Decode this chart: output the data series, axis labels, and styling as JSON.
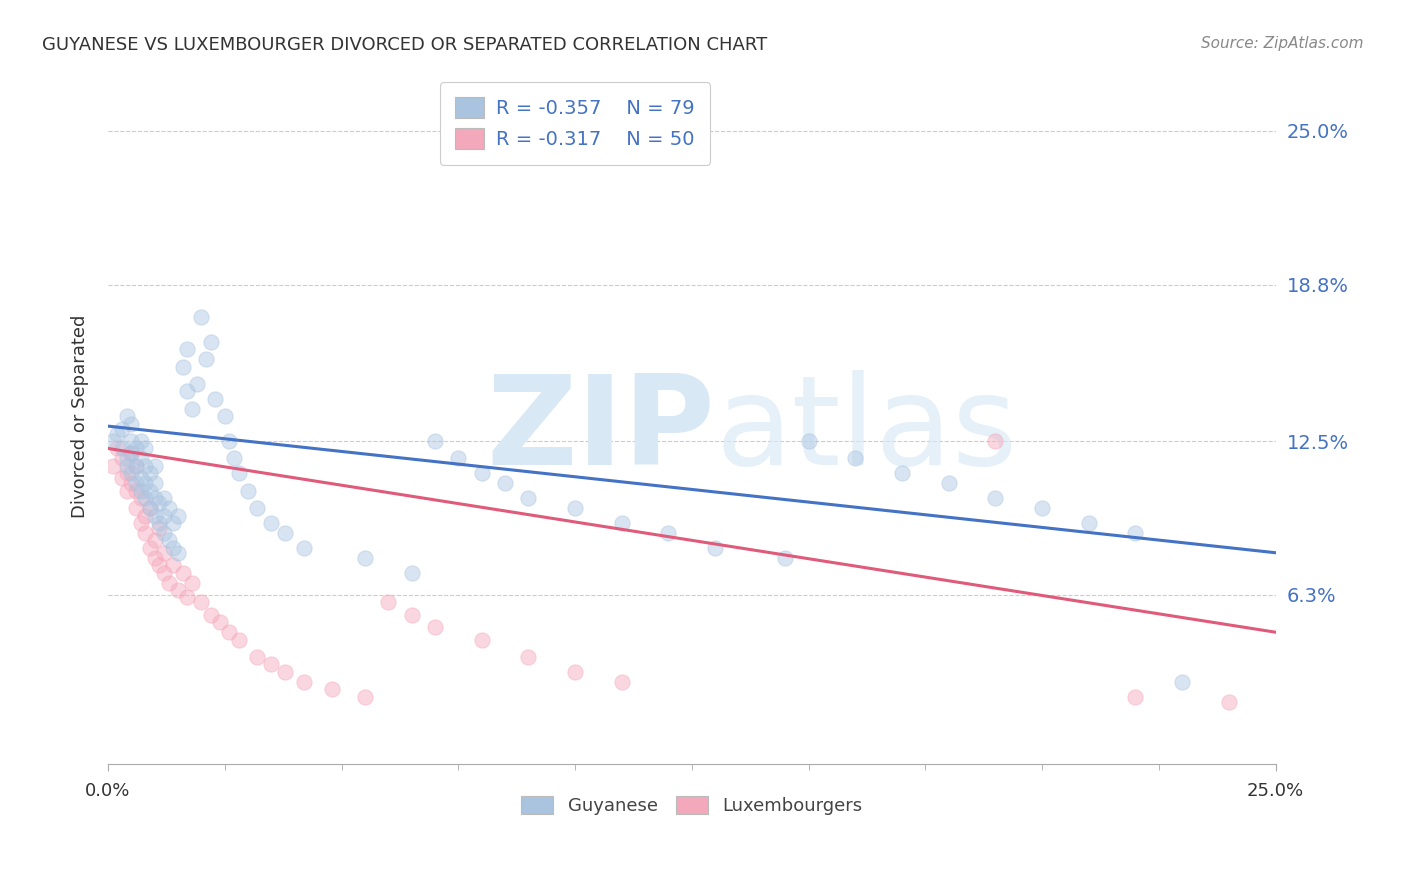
{
  "title": "GUYANESE VS LUXEMBOURGER DIVORCED OR SEPARATED CORRELATION CHART",
  "source": "Source: ZipAtlas.com",
  "ylabel": "Divorced or Separated",
  "ytick_labels": [
    "6.3%",
    "12.5%",
    "18.8%",
    "25.0%"
  ],
  "ytick_values": [
    0.063,
    0.125,
    0.188,
    0.25
  ],
  "xlim": [
    0.0,
    0.25
  ],
  "ylim": [
    -0.005,
    0.275
  ],
  "legend_r_blue": "R = -0.357",
  "legend_n_blue": "N = 79",
  "legend_r_pink": "R = -0.317",
  "legend_n_pink": "N = 50",
  "blue_color": "#aac4e0",
  "pink_color": "#f4a8bb",
  "blue_line_color": "#4472c4",
  "pink_line_color": "#e05a7a",
  "right_tick_color": "#4472c4",
  "watermark_zip": "ZIP",
  "watermark_atlas": "atlas",
  "watermark_color": "#d8e8f5",
  "grid_color": "#cccccc",
  "background_color": "#ffffff",
  "marker_size": 120,
  "marker_alpha": 0.45,
  "line_width": 2.2,
  "blue_scatter_x": [
    0.001,
    0.002,
    0.003,
    0.003,
    0.004,
    0.004,
    0.004,
    0.005,
    0.005,
    0.005,
    0.005,
    0.006,
    0.006,
    0.006,
    0.007,
    0.007,
    0.007,
    0.007,
    0.008,
    0.008,
    0.008,
    0.008,
    0.009,
    0.009,
    0.009,
    0.01,
    0.01,
    0.01,
    0.01,
    0.011,
    0.011,
    0.012,
    0.012,
    0.012,
    0.013,
    0.013,
    0.014,
    0.014,
    0.015,
    0.015,
    0.016,
    0.017,
    0.017,
    0.018,
    0.019,
    0.02,
    0.021,
    0.022,
    0.023,
    0.025,
    0.026,
    0.027,
    0.028,
    0.03,
    0.032,
    0.035,
    0.038,
    0.042,
    0.055,
    0.065,
    0.07,
    0.075,
    0.08,
    0.085,
    0.09,
    0.1,
    0.11,
    0.12,
    0.13,
    0.145,
    0.15,
    0.16,
    0.17,
    0.18,
    0.19,
    0.2,
    0.21,
    0.22,
    0.23
  ],
  "blue_scatter_y": [
    0.125,
    0.128,
    0.122,
    0.13,
    0.115,
    0.118,
    0.135,
    0.112,
    0.12,
    0.125,
    0.132,
    0.108,
    0.115,
    0.122,
    0.105,
    0.11,
    0.118,
    0.125,
    0.102,
    0.108,
    0.115,
    0.122,
    0.098,
    0.105,
    0.112,
    0.095,
    0.102,
    0.108,
    0.115,
    0.092,
    0.1,
    0.088,
    0.095,
    0.102,
    0.085,
    0.098,
    0.082,
    0.092,
    0.08,
    0.095,
    0.155,
    0.145,
    0.162,
    0.138,
    0.148,
    0.175,
    0.158,
    0.165,
    0.142,
    0.135,
    0.125,
    0.118,
    0.112,
    0.105,
    0.098,
    0.092,
    0.088,
    0.082,
    0.078,
    0.072,
    0.125,
    0.118,
    0.112,
    0.108,
    0.102,
    0.098,
    0.092,
    0.088,
    0.082,
    0.078,
    0.125,
    0.118,
    0.112,
    0.108,
    0.102,
    0.098,
    0.092,
    0.088,
    0.028
  ],
  "pink_scatter_x": [
    0.001,
    0.002,
    0.003,
    0.003,
    0.004,
    0.004,
    0.005,
    0.005,
    0.006,
    0.006,
    0.006,
    0.007,
    0.007,
    0.008,
    0.008,
    0.009,
    0.009,
    0.01,
    0.01,
    0.011,
    0.011,
    0.012,
    0.012,
    0.013,
    0.014,
    0.015,
    0.016,
    0.017,
    0.018,
    0.02,
    0.022,
    0.024,
    0.026,
    0.028,
    0.032,
    0.035,
    0.038,
    0.042,
    0.048,
    0.055,
    0.06,
    0.065,
    0.07,
    0.08,
    0.09,
    0.1,
    0.11,
    0.19,
    0.22,
    0.24
  ],
  "pink_scatter_y": [
    0.115,
    0.122,
    0.118,
    0.11,
    0.105,
    0.112,
    0.108,
    0.12,
    0.098,
    0.105,
    0.115,
    0.092,
    0.102,
    0.088,
    0.095,
    0.082,
    0.098,
    0.078,
    0.085,
    0.075,
    0.09,
    0.072,
    0.08,
    0.068,
    0.075,
    0.065,
    0.072,
    0.062,
    0.068,
    0.06,
    0.055,
    0.052,
    0.048,
    0.045,
    0.038,
    0.035,
    0.032,
    0.028,
    0.025,
    0.022,
    0.06,
    0.055,
    0.05,
    0.045,
    0.038,
    0.032,
    0.028,
    0.125,
    0.022,
    0.02
  ],
  "blue_line_x0": 0.0,
  "blue_line_y0": 0.131,
  "blue_line_x1": 0.25,
  "blue_line_y1": 0.08,
  "pink_line_x0": 0.0,
  "pink_line_y0": 0.122,
  "pink_line_x1": 0.25,
  "pink_line_y1": 0.048
}
